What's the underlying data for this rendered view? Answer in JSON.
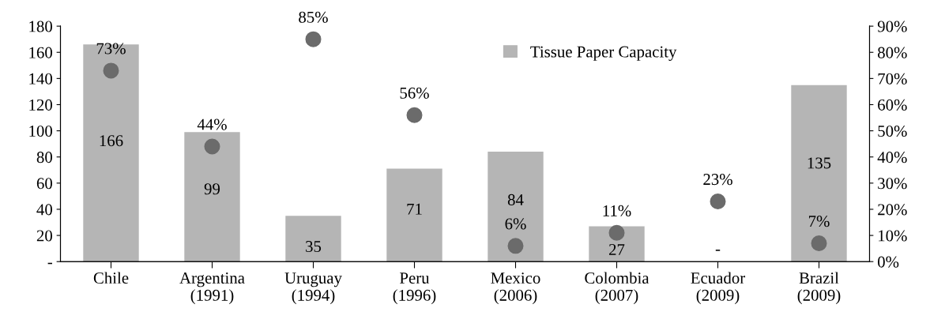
{
  "chart_data": {
    "type": "bar",
    "categories": [
      "Chile",
      "Argentina\n(1991)",
      "Uruguay\n(1994)",
      "Peru\n(1996)",
      "Mexico\n(2006)",
      "Colombia\n(2007)",
      "Ecuador\n(2009)",
      "Brazil\n(2009)"
    ],
    "series": [
      {
        "name": "Tissue Paper Capacity",
        "color": "#b5b5b5",
        "values": [
          166,
          99,
          35,
          71,
          84,
          27,
          0,
          135
        ],
        "value_labels": [
          "166",
          "99",
          "35",
          "71",
          "84",
          "27",
          "-",
          "135"
        ]
      },
      {
        "type": "scatter",
        "axis": "y2",
        "color": "#6b6b6b",
        "marker": "circle",
        "values": [
          73,
          44,
          85,
          56,
          6,
          11,
          23,
          7
        ],
        "value_labels": [
          "73%",
          "44%",
          "85%",
          "56%",
          "6%",
          "11%",
          "23%",
          "7%"
        ]
      }
    ],
    "ylim": [
      0,
      180
    ],
    "yticks": [
      {
        "value": 0,
        "label": "-"
      },
      20,
      40,
      60,
      80,
      100,
      120,
      140,
      160,
      180
    ],
    "y2lim": [
      0,
      90
    ],
    "y2ticks": [
      {
        "value": 0,
        "label": "0%"
      },
      {
        "value": 10,
        "label": "10%"
      },
      {
        "value": 20,
        "label": "20%"
      },
      {
        "value": 30,
        "label": "30%"
      },
      {
        "value": 40,
        "label": "40%"
      },
      {
        "value": 50,
        "label": "50%"
      },
      {
        "value": 60,
        "label": "60%"
      },
      {
        "value": 70,
        "label": "70%"
      },
      {
        "value": 80,
        "label": "80%"
      },
      {
        "value": 90,
        "label": "90%"
      }
    ],
    "legend": "top right",
    "grid": false
  }
}
